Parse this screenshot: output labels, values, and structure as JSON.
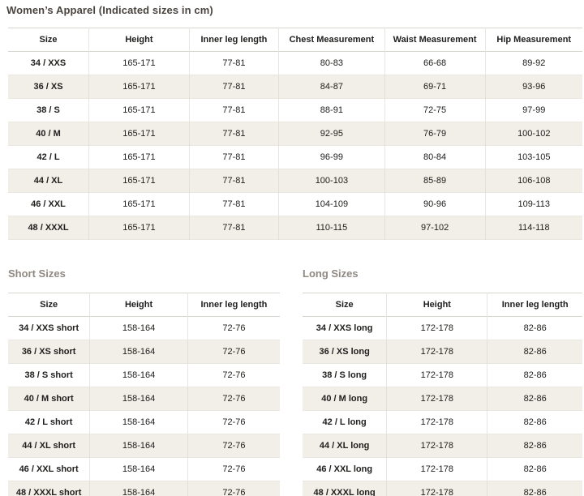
{
  "title": "Women’s Apparel (Indicated sizes in cm)",
  "colors": {
    "title_text": "#4a443f",
    "section_heading_text": "#8f8982",
    "zebra_row": "#f2eee8",
    "row_border": "#eae7e1",
    "header_border": "#d8d5cf",
    "cell_text": "#21201e"
  },
  "main_table": {
    "headers": [
      "Size",
      "Height",
      "Inner leg length",
      "Chest Measurement",
      "Waist Measurement",
      "Hip Measurement"
    ],
    "rows": [
      [
        "34 / XXS",
        "165-171",
        "77-81",
        "80-83",
        "66-68",
        "89-92"
      ],
      [
        "36 / XS",
        "165-171",
        "77-81",
        "84-87",
        "69-71",
        "93-96"
      ],
      [
        "38 / S",
        "165-171",
        "77-81",
        "88-91",
        "72-75",
        "97-99"
      ],
      [
        "40 / M",
        "165-171",
        "77-81",
        "92-95",
        "76-79",
        "100-102"
      ],
      [
        "42 / L",
        "165-171",
        "77-81",
        "96-99",
        "80-84",
        "103-105"
      ],
      [
        "44 / XL",
        "165-171",
        "77-81",
        "100-103",
        "85-89",
        "106-108"
      ],
      [
        "46 / XXL",
        "165-171",
        "77-81",
        "104-109",
        "90-96",
        "109-113"
      ],
      [
        "48 / XXXL",
        "165-171",
        "77-81",
        "110-115",
        "97-102",
        "114-118"
      ]
    ]
  },
  "short_table": {
    "heading": "Short Sizes",
    "headers": [
      "Size",
      "Height",
      "Inner leg length"
    ],
    "rows": [
      [
        "34 / XXS short",
        "158-164",
        "72-76"
      ],
      [
        "36 / XS short",
        "158-164",
        "72-76"
      ],
      [
        "38 / S short",
        "158-164",
        "72-76"
      ],
      [
        "40 / M short",
        "158-164",
        "72-76"
      ],
      [
        "42 / L short",
        "158-164",
        "72-76"
      ],
      [
        "44 / XL short",
        "158-164",
        "72-76"
      ],
      [
        "46 / XXL short",
        "158-164",
        "72-76"
      ],
      [
        "48 / XXXL short",
        "158-164",
        "72-76"
      ]
    ]
  },
  "long_table": {
    "heading": "Long Sizes",
    "headers": [
      "Size",
      "Height",
      "Inner leg length"
    ],
    "rows": [
      [
        "34 / XXS long",
        "172-178",
        "82-86"
      ],
      [
        "36 / XS long",
        "172-178",
        "82-86"
      ],
      [
        "38 / S long",
        "172-178",
        "82-86"
      ],
      [
        "40 / M long",
        "172-178",
        "82-86"
      ],
      [
        "42 / L long",
        "172-178",
        "82-86"
      ],
      [
        "44 / XL long",
        "172-178",
        "82-86"
      ],
      [
        "46 / XXL long",
        "172-178",
        "82-86"
      ],
      [
        "48 / XXXL long",
        "172-178",
        "82-86"
      ]
    ]
  }
}
